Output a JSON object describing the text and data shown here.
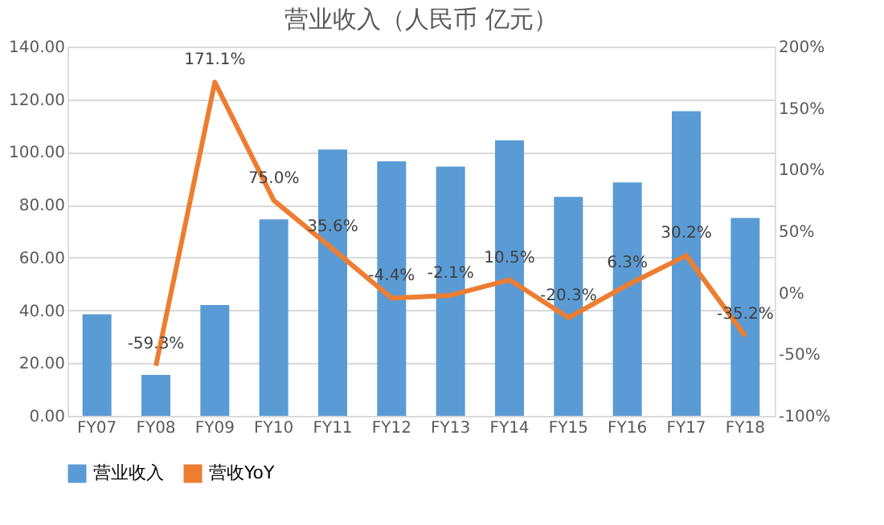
{
  "chart_data": {
    "type": "bar",
    "title": "营业收入（人民币 亿元）",
    "categories": [
      "FY07",
      "FY08",
      "FY09",
      "FY10",
      "FY11",
      "FY12",
      "FY13",
      "FY14",
      "FY15",
      "FY16",
      "FY17",
      "FY18"
    ],
    "series": [
      {
        "name": "营业收入",
        "color": "#5b9bd5",
        "values": [
          38.5,
          15.5,
          42,
          74.5,
          101,
          96.5,
          94.5,
          104.5,
          83,
          88.5,
          115.5,
          75
        ]
      },
      {
        "name": "营收YoY",
        "type": "line",
        "axis": "y2",
        "color": "#ed7d31",
        "values": [
          null,
          -59.3,
          171.1,
          75.0,
          35.6,
          -4.4,
          -2.1,
          10.5,
          -20.3,
          6.3,
          30.2,
          -35.2
        ],
        "value_labels": [
          null,
          "-59.3%",
          "171.1%",
          "75.0%",
          "35.6%",
          "-4.4%",
          "-2.1%",
          "10.5%",
          "-20.3%",
          "6.3%",
          "30.2%",
          "-35.2%"
        ]
      }
    ],
    "ylim": [
      0,
      140
    ],
    "yticks": [
      {
        "value": 0,
        "label": "0.00"
      },
      {
        "value": 20,
        "label": "20.00"
      },
      {
        "value": 40,
        "label": "40.00"
      },
      {
        "value": 60,
        "label": "60.00"
      },
      {
        "value": 80,
        "label": "80.00"
      },
      {
        "value": 100,
        "label": "100.00"
      },
      {
        "value": 120,
        "label": "120.00"
      },
      {
        "value": 140,
        "label": "140.00"
      }
    ],
    "y2lim": [
      -100,
      200
    ],
    "y2ticks": [
      {
        "value": -100,
        "label": "-100%"
      },
      {
        "value": -50,
        "label": "-50%"
      },
      {
        "value": 0,
        "label": "0%"
      },
      {
        "value": 50,
        "label": "50%"
      },
      {
        "value": 100,
        "label": "100%"
      },
      {
        "value": 150,
        "label": "150%"
      },
      {
        "value": 200,
        "label": "200%"
      }
    ],
    "grid": "y",
    "legend": "bottom"
  }
}
